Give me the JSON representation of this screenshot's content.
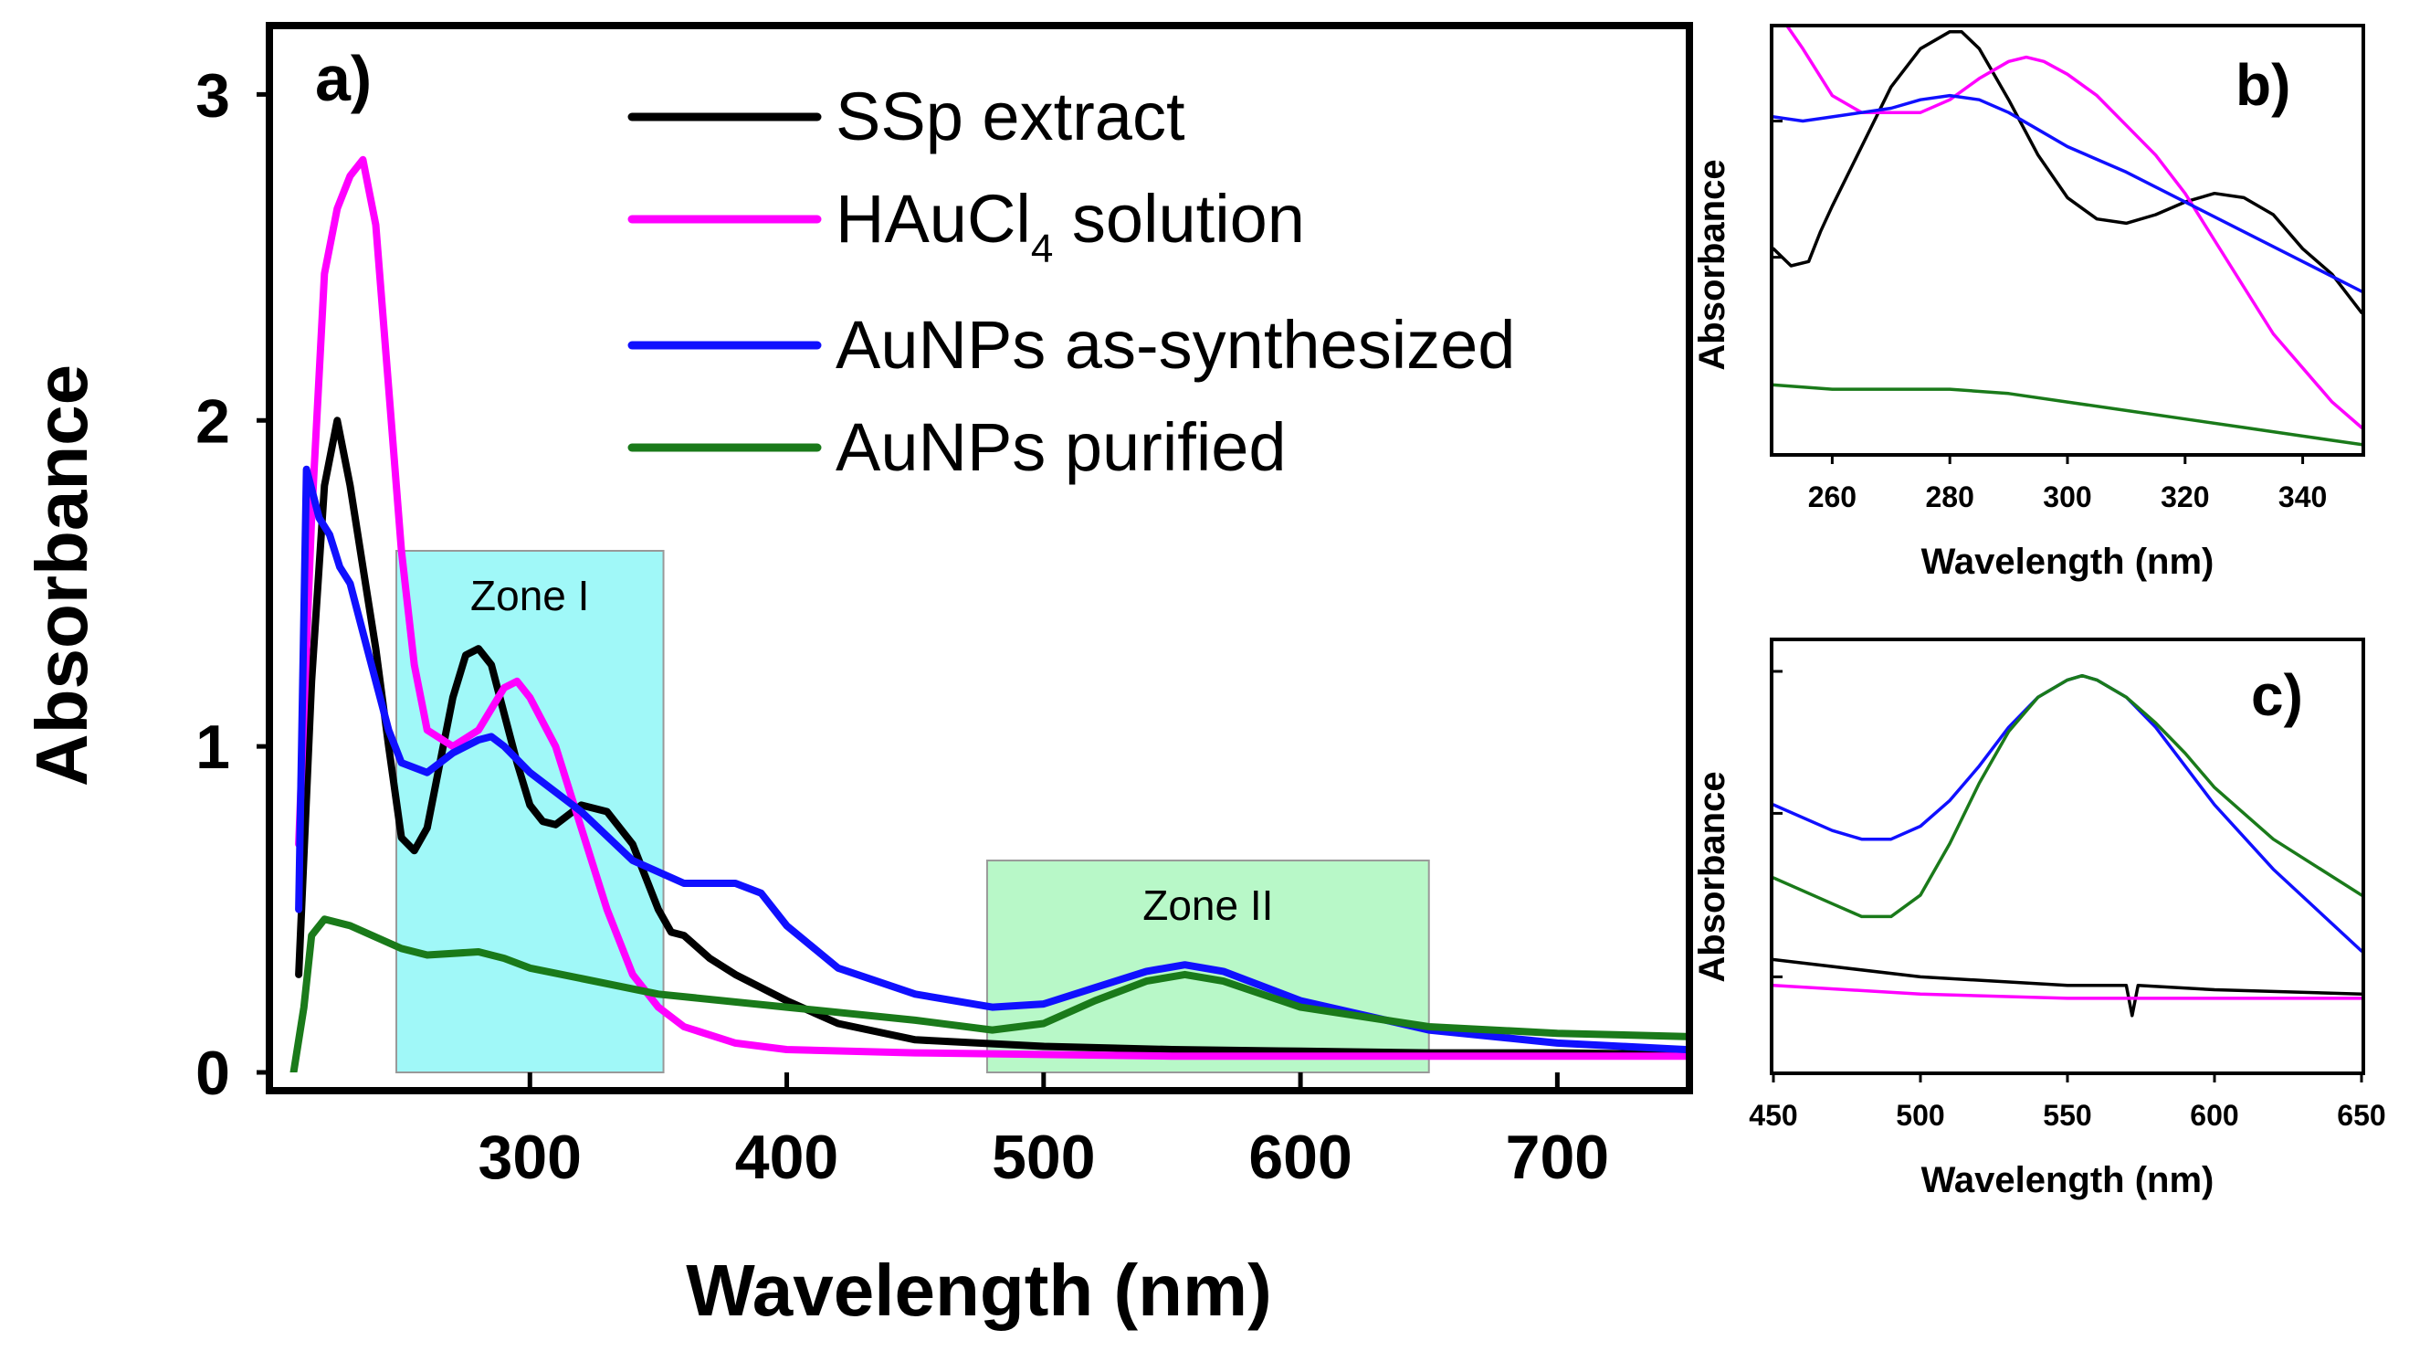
{
  "colors": {
    "SSp extract": "#000000",
    "HAuCl4 solution": "#ff00ff",
    "AuNPs as-synthesized": "#1010ff",
    "AuNPs purified": "#1a7a1a",
    "zone1_fill": "#a0f8f8",
    "zone2_fill": "#b8f8c8"
  },
  "chart_data": [
    {
      "panel": "a)",
      "type": "line",
      "xlabel": "Wavelength (nm)",
      "ylabel": "Absorbance",
      "xlim": [
        200,
        750
      ],
      "ylim": [
        0,
        3.2
      ],
      "xticks": [
        300,
        400,
        500,
        600,
        700
      ],
      "yticks": [
        0,
        1,
        2,
        3
      ],
      "zones": [
        {
          "label": "Zone I",
          "x": [
            248,
            352
          ],
          "y": [
            0,
            1.6
          ]
        },
        {
          "label": "Zone II",
          "x": [
            478,
            650
          ],
          "y": [
            0,
            0.65
          ]
        }
      ],
      "legend_location": "top",
      "legend": [
        {
          "name": "SSp extract",
          "sub": ""
        },
        {
          "name": "HAuCl",
          "sub": "4",
          "suffix": " solution"
        },
        {
          "name": "AuNPs as-synthesized",
          "sub": ""
        },
        {
          "name": "AuNPs purified",
          "sub": ""
        }
      ],
      "series": [
        {
          "name": "SSp extract",
          "x": [
            210,
            215,
            220,
            225,
            230,
            235,
            240,
            245,
            250,
            255,
            260,
            265,
            270,
            275,
            280,
            285,
            290,
            295,
            300,
            305,
            310,
            320,
            330,
            340,
            350,
            355,
            360,
            370,
            380,
            390,
            400,
            420,
            450,
            500,
            550,
            600,
            650,
            700,
            750
          ],
          "y": [
            0.3,
            1.2,
            1.8,
            2.0,
            1.8,
            1.55,
            1.3,
            1.0,
            0.72,
            0.68,
            0.75,
            0.95,
            1.15,
            1.28,
            1.3,
            1.25,
            1.1,
            0.95,
            0.82,
            0.77,
            0.76,
            0.82,
            0.8,
            0.7,
            0.5,
            0.43,
            0.42,
            0.35,
            0.3,
            0.26,
            0.22,
            0.15,
            0.1,
            0.08,
            0.07,
            0.065,
            0.06,
            0.06,
            0.055
          ]
        },
        {
          "name": "HAuCl4 solution",
          "x": [
            210,
            215,
            220,
            225,
            230,
            235,
            240,
            245,
            250,
            255,
            260,
            270,
            280,
            290,
            295,
            300,
            310,
            320,
            330,
            340,
            350,
            360,
            380,
            400,
            450,
            500,
            550,
            600,
            650,
            700,
            750
          ],
          "y": [
            0.7,
            1.7,
            2.45,
            2.65,
            2.75,
            2.8,
            2.6,
            2.1,
            1.6,
            1.25,
            1.05,
            1.0,
            1.05,
            1.18,
            1.2,
            1.15,
            1.0,
            0.75,
            0.5,
            0.3,
            0.2,
            0.14,
            0.09,
            0.07,
            0.06,
            0.055,
            0.05,
            0.05,
            0.05,
            0.05,
            0.05
          ]
        },
        {
          "name": "AuNPs as-synthesized",
          "x": [
            210,
            213,
            218,
            222,
            226,
            230,
            235,
            240,
            245,
            250,
            260,
            270,
            280,
            285,
            290,
            300,
            320,
            340,
            360,
            380,
            390,
            400,
            420,
            450,
            480,
            500,
            520,
            540,
            555,
            570,
            600,
            650,
            700,
            750
          ],
          "y": [
            0.5,
            1.85,
            1.7,
            1.65,
            1.55,
            1.5,
            1.35,
            1.2,
            1.05,
            0.95,
            0.92,
            0.98,
            1.02,
            1.03,
            1.0,
            0.92,
            0.8,
            0.65,
            0.58,
            0.58,
            0.55,
            0.45,
            0.32,
            0.24,
            0.2,
            0.21,
            0.26,
            0.31,
            0.33,
            0.31,
            0.22,
            0.13,
            0.09,
            0.07
          ]
        },
        {
          "name": "AuNPs purified",
          "x": [
            208,
            212,
            215,
            220,
            230,
            250,
            260,
            280,
            290,
            300,
            350,
            400,
            450,
            480,
            500,
            520,
            540,
            555,
            570,
            600,
            650,
            700,
            750
          ],
          "y": [
            0.0,
            0.2,
            0.42,
            0.47,
            0.45,
            0.38,
            0.36,
            0.37,
            0.35,
            0.32,
            0.24,
            0.2,
            0.16,
            0.13,
            0.15,
            0.22,
            0.28,
            0.3,
            0.28,
            0.2,
            0.14,
            0.12,
            0.11
          ]
        }
      ]
    },
    {
      "panel": "b)",
      "type": "line",
      "xlabel": "Wavelength (nm)",
      "ylabel": "Absorbance",
      "xlim": [
        250,
        350
      ],
      "ylim": [
        0,
        1
      ],
      "xticks": [
        260,
        280,
        300,
        320,
        340
      ],
      "series": [
        {
          "name": "SSp extract",
          "x": [
            250,
            253,
            256,
            258,
            260,
            265,
            270,
            275,
            280,
            282,
            285,
            290,
            295,
            300,
            305,
            310,
            315,
            320,
            325,
            330,
            335,
            340,
            345,
            350
          ],
          "y": [
            0.48,
            0.44,
            0.45,
            0.52,
            0.58,
            0.72,
            0.86,
            0.95,
            0.99,
            0.99,
            0.95,
            0.83,
            0.7,
            0.6,
            0.55,
            0.54,
            0.56,
            0.59,
            0.61,
            0.6,
            0.56,
            0.48,
            0.42,
            0.33
          ]
        },
        {
          "name": "HAuCl4 solution",
          "x": [
            250,
            255,
            260,
            265,
            270,
            275,
            280,
            285,
            290,
            293,
            296,
            300,
            305,
            310,
            315,
            320,
            325,
            330,
            335,
            340,
            345,
            350
          ],
          "y": [
            1.05,
            0.95,
            0.84,
            0.8,
            0.8,
            0.8,
            0.83,
            0.88,
            0.92,
            0.93,
            0.92,
            0.89,
            0.84,
            0.77,
            0.7,
            0.61,
            0.5,
            0.39,
            0.28,
            0.2,
            0.12,
            0.06
          ]
        },
        {
          "name": "AuNPs as-synthesized",
          "x": [
            250,
            255,
            260,
            265,
            270,
            275,
            280,
            285,
            290,
            295,
            300,
            310,
            320,
            330,
            340,
            350
          ],
          "y": [
            0.79,
            0.78,
            0.79,
            0.8,
            0.81,
            0.83,
            0.84,
            0.83,
            0.8,
            0.76,
            0.72,
            0.66,
            0.59,
            0.52,
            0.45,
            0.38
          ]
        },
        {
          "name": "AuNPs purified",
          "x": [
            250,
            260,
            270,
            280,
            290,
            300,
            310,
            320,
            330,
            340,
            350
          ],
          "y": [
            0.16,
            0.15,
            0.15,
            0.15,
            0.14,
            0.12,
            0.1,
            0.08,
            0.06,
            0.04,
            0.02
          ]
        }
      ]
    },
    {
      "panel": "c)",
      "type": "line",
      "xlabel": "Wavelength (nm)",
      "ylabel": "Absorbance",
      "xlim": [
        450,
        650
      ],
      "ylim": [
        0,
        1
      ],
      "xticks": [
        450,
        500,
        550,
        600,
        650
      ],
      "series": [
        {
          "name": "SSp extract",
          "x": [
            450,
            500,
            550,
            570,
            572,
            574,
            600,
            650
          ],
          "y": [
            0.26,
            0.22,
            0.2,
            0.2,
            0.13,
            0.2,
            0.19,
            0.18
          ]
        },
        {
          "name": "HAuCl4 solution",
          "x": [
            450,
            500,
            550,
            600,
            650
          ],
          "y": [
            0.2,
            0.18,
            0.17,
            0.17,
            0.17
          ]
        },
        {
          "name": "AuNPs as-synthesized",
          "x": [
            450,
            470,
            480,
            490,
            500,
            510,
            520,
            530,
            540,
            550,
            555,
            560,
            570,
            580,
            590,
            600,
            620,
            650
          ],
          "y": [
            0.62,
            0.56,
            0.54,
            0.54,
            0.57,
            0.63,
            0.71,
            0.8,
            0.87,
            0.91,
            0.92,
            0.91,
            0.87,
            0.8,
            0.71,
            0.62,
            0.47,
            0.28
          ]
        },
        {
          "name": "AuNPs purified",
          "x": [
            450,
            470,
            480,
            490,
            500,
            510,
            520,
            530,
            540,
            550,
            555,
            560,
            570,
            580,
            590,
            600,
            620,
            650
          ],
          "y": [
            0.45,
            0.39,
            0.36,
            0.36,
            0.41,
            0.53,
            0.67,
            0.79,
            0.87,
            0.91,
            0.92,
            0.91,
            0.87,
            0.81,
            0.74,
            0.66,
            0.54,
            0.41
          ]
        }
      ]
    }
  ]
}
